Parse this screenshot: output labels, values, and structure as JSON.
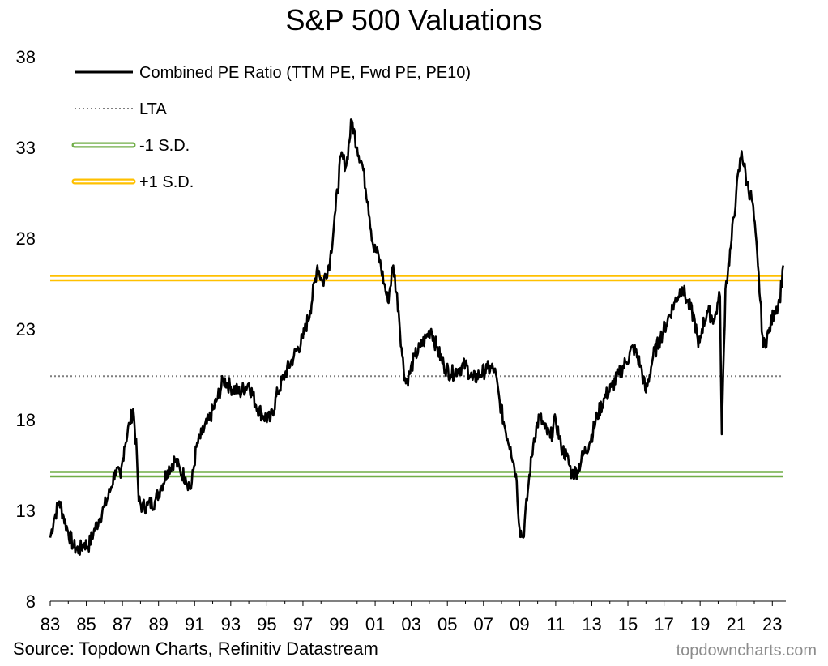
{
  "chart_data": {
    "type": "line",
    "title": "S&P 500 Valuations",
    "xlabel": "",
    "ylabel": "",
    "ylim": [
      8,
      38
    ],
    "yticks": [
      "8",
      "13",
      "18",
      "23",
      "28",
      "33",
      "38"
    ],
    "xlim": [
      1983,
      2023.75
    ],
    "xtick_labels": [
      "83",
      "85",
      "87",
      "89",
      "91",
      "93",
      "95",
      "97",
      "99",
      "01",
      "03",
      "05",
      "07",
      "09",
      "11",
      "13",
      "15",
      "17",
      "19",
      "21",
      "23"
    ],
    "grid": false,
    "legend_position": "top-left",
    "series": [
      {
        "name": "Combined PE Ratio (TTM PE, Fwd PE, PE10)",
        "color": "#000000",
        "style": "solid",
        "x": [
          1983.0,
          1983.2,
          1983.5,
          1983.7,
          1984.0,
          1984.3,
          1984.6,
          1984.9,
          1985.1,
          1985.4,
          1985.7,
          1986.0,
          1986.3,
          1986.6,
          1986.9,
          1987.1,
          1987.4,
          1987.6,
          1987.8,
          1987.9,
          1988.1,
          1988.4,
          1988.8,
          1989.1,
          1989.5,
          1989.9,
          1990.2,
          1990.5,
          1990.8,
          1991.1,
          1991.4,
          1991.8,
          1992.2,
          1992.6,
          1993.0,
          1993.5,
          1994.0,
          1994.4,
          1994.8,
          1995.2,
          1995.6,
          1996.0,
          1996.5,
          1997.0,
          1997.4,
          1997.8,
          1998.1,
          1998.5,
          1998.8,
          1999.1,
          1999.4,
          1999.7,
          2000.0,
          2000.3,
          2000.6,
          2000.9,
          2001.2,
          2001.5,
          2001.7,
          2002.0,
          2002.3,
          2002.5,
          2002.7,
          2002.9,
          2003.2,
          2003.5,
          2003.8,
          2004.1,
          2004.4,
          2004.8,
          2005.2,
          2005.6,
          2006.0,
          2006.4,
          2006.8,
          2007.2,
          2007.6,
          2007.9,
          2008.2,
          2008.5,
          2008.8,
          2009.0,
          2009.2,
          2009.5,
          2009.8,
          2010.1,
          2010.4,
          2010.7,
          2011.0,
          2011.3,
          2011.6,
          2011.9,
          2012.2,
          2012.5,
          2012.9,
          2013.3,
          2013.7,
          2014.1,
          2014.5,
          2014.9,
          2015.3,
          2015.7,
          2016.0,
          2016.4,
          2016.8,
          2017.2,
          2017.6,
          2018.0,
          2018.3,
          2018.7,
          2018.9,
          2019.1,
          2019.4,
          2019.8,
          2020.0,
          2020.1,
          2020.2,
          2020.4,
          2020.7,
          2021.0,
          2021.3,
          2021.6,
          2021.9,
          2022.2,
          2022.5,
          2022.8,
          2023.1,
          2023.4,
          2023.6
        ],
        "values": [
          11.5,
          12.5,
          13.5,
          12.8,
          11.8,
          11.0,
          10.8,
          11.2,
          11.0,
          11.8,
          12.5,
          13.2,
          14.0,
          15.2,
          14.8,
          16.5,
          17.8,
          18.6,
          16.0,
          13.5,
          13.2,
          13.3,
          13.5,
          14.2,
          15.2,
          15.8,
          15.2,
          14.8,
          14.2,
          16.5,
          17.2,
          18.0,
          19.0,
          20.2,
          19.8,
          19.5,
          20.0,
          18.8,
          18.2,
          18.0,
          19.5,
          20.5,
          21.5,
          22.5,
          24.0,
          26.5,
          25.5,
          26.8,
          29.5,
          32.5,
          32.0,
          34.5,
          33.0,
          32.0,
          30.0,
          27.5,
          27.0,
          25.5,
          24.5,
          26.5,
          24.0,
          21.5,
          20.0,
          20.5,
          21.5,
          22.0,
          22.5,
          23.0,
          22.0,
          21.0,
          20.5,
          20.8,
          21.0,
          20.2,
          20.5,
          20.8,
          20.8,
          19.0,
          17.5,
          16.5,
          15.0,
          12.0,
          11.5,
          14.5,
          17.0,
          18.2,
          17.5,
          17.0,
          18.0,
          16.5,
          16.0,
          15.0,
          15.2,
          16.0,
          16.8,
          18.2,
          19.2,
          19.8,
          20.5,
          21.2,
          22.0,
          21.0,
          19.5,
          21.5,
          22.5,
          23.5,
          24.5,
          25.3,
          24.5,
          23.5,
          22.0,
          23.0,
          24.0,
          23.5,
          24.5,
          24.8,
          17.2,
          25.2,
          27.5,
          30.5,
          32.8,
          31.0,
          30.0,
          26.5,
          22.0,
          22.8,
          24.0,
          24.5,
          26.5
        ]
      },
      {
        "name": "LTA",
        "color": "#7f7f7f",
        "style": "dotted",
        "x": [
          1983.0,
          2023.6
        ],
        "values": [
          20.4,
          20.4
        ]
      },
      {
        "name": "-1 S.D.",
        "color": "#70ad47",
        "style": "double",
        "x": [
          1983.0,
          2023.6
        ],
        "values": [
          15.0,
          15.0
        ]
      },
      {
        "name": "+1 S.D.",
        "color": "#ffc000",
        "style": "double",
        "x": [
          1983.0,
          2023.6
        ],
        "values": [
          25.8,
          25.8
        ]
      }
    ]
  },
  "footer": {
    "source": "Source: Topdown Charts, Refinitiv Datastream",
    "watermark": "topdowncharts.com"
  }
}
